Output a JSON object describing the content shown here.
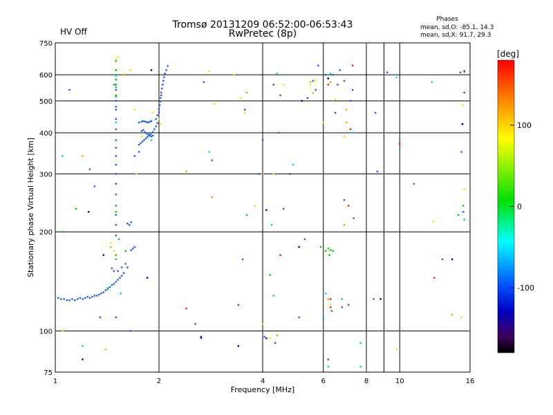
{
  "status_label": "HV Off",
  "status_color": "#e00000",
  "chart_data": {
    "type": "scatter",
    "title": "Tromsø 20131209 06:52:00-06:53:43",
    "subtitle": "RwPretec (8p)",
    "stats": {
      "heading": "Phases",
      "line1": "mean, sd,O: -85.1, 14.3",
      "line2": "mean, sd,X:  91.7, 29.3"
    },
    "xlabel": "Frequency [MHz]",
    "ylabel": "Stationary phase Virtual Height [km]",
    "x_scale": "log",
    "y_scale": "log",
    "xlim": [
      1,
      16
    ],
    "ylim": [
      75,
      750
    ],
    "x_ticks": [
      1,
      2,
      4,
      6,
      8,
      10,
      16
    ],
    "x_tick_labels": [
      "1",
      "2",
      "4",
      "6",
      "8",
      "10",
      "16"
    ],
    "y_ticks": [
      75,
      100,
      200,
      300,
      400,
      500,
      600,
      750
    ],
    "y_tick_labels": [
      "75",
      "100",
      "200",
      "300",
      "400",
      "500",
      "600",
      "750"
    ],
    "grid": true,
    "colorbar": {
      "label": "[deg]",
      "range": [
        -180,
        180
      ],
      "ticks": [
        100,
        0,
        -100
      ],
      "tick_labels": [
        "100",
        "0",
        "-100"
      ],
      "colors": [
        "#ff0000",
        "#ffa000",
        "#ffff00",
        "#00e000",
        "#00ffff",
        "#0060ff",
        "#0000c0",
        "#400060",
        "#000000"
      ]
    },
    "series": [
      {
        "color": "#1f5ae6",
        "points": [
          [
            1.02,
            126
          ],
          [
            1.04,
            125
          ],
          [
            1.06,
            125
          ],
          [
            1.08,
            124
          ],
          [
            1.1,
            124
          ],
          [
            1.12,
            125
          ],
          [
            1.14,
            124
          ],
          [
            1.16,
            125
          ],
          [
            1.18,
            126
          ],
          [
            1.2,
            125
          ],
          [
            1.22,
            126
          ],
          [
            1.24,
            127
          ],
          [
            1.26,
            126
          ],
          [
            1.28,
            127
          ],
          [
            1.3,
            128
          ],
          [
            1.32,
            128
          ],
          [
            1.34,
            129
          ],
          [
            1.36,
            130
          ],
          [
            1.38,
            131
          ],
          [
            1.4,
            133
          ],
          [
            1.42,
            134
          ],
          [
            1.44,
            136
          ],
          [
            1.46,
            138
          ],
          [
            1.48,
            139
          ],
          [
            1.5,
            141
          ],
          [
            1.52,
            143
          ],
          [
            1.54,
            145
          ],
          [
            1.56,
            147
          ],
          [
            1.58,
            150
          ],
          [
            1.62,
            212
          ],
          [
            1.64,
            210
          ],
          [
            1.66,
            214
          ],
          [
            1.66,
            176
          ],
          [
            1.68,
            178
          ],
          [
            1.7,
            180
          ],
          [
            1.75,
            430
          ],
          [
            1.78,
            432
          ],
          [
            1.8,
            434
          ],
          [
            1.82,
            433
          ],
          [
            1.84,
            431
          ],
          [
            1.86,
            430
          ],
          [
            1.88,
            432
          ],
          [
            1.9,
            434
          ],
          [
            1.78,
            405
          ],
          [
            1.8,
            408
          ],
          [
            1.82,
            402
          ],
          [
            1.84,
            398
          ],
          [
            1.86,
            395
          ],
          [
            1.88,
            392
          ],
          [
            1.9,
            390
          ],
          [
            1.92,
            392
          ],
          [
            1.75,
            368
          ],
          [
            1.77,
            372
          ],
          [
            1.79,
            376
          ],
          [
            1.81,
            380
          ],
          [
            1.83,
            384
          ],
          [
            1.85,
            388
          ],
          [
            1.87,
            392
          ],
          [
            1.89,
            396
          ],
          [
            1.92,
            402
          ],
          [
            1.94,
            410
          ],
          [
            1.96,
            418
          ],
          [
            1.98,
            428
          ],
          [
            1.96,
            440
          ],
          [
            1.98,
            452
          ],
          [
            2.0,
            462
          ],
          [
            2.0,
            472
          ],
          [
            2.01,
            485
          ],
          [
            2.02,
            498
          ],
          [
            2.02,
            510
          ],
          [
            2.03,
            520
          ],
          [
            2.03,
            530
          ],
          [
            2.04,
            545
          ],
          [
            2.05,
            560
          ],
          [
            2.06,
            575
          ],
          [
            2.07,
            590
          ],
          [
            2.08,
            605
          ],
          [
            2.1,
            620
          ],
          [
            2.12,
            638
          ],
          [
            1.5,
            300
          ],
          [
            1.5,
            320
          ],
          [
            1.5,
            340
          ],
          [
            1.5,
            360
          ],
          [
            1.5,
            380
          ],
          [
            1.5,
            410
          ],
          [
            1.5,
            440
          ],
          [
            1.5,
            480
          ],
          [
            1.5,
            520
          ],
          [
            1.5,
            280
          ],
          [
            1.5,
            260
          ],
          [
            1.5,
            240
          ],
          [
            1.5,
            225
          ],
          [
            1.5,
            210
          ],
          [
            1.5,
            195
          ],
          [
            1.5,
            110
          ],
          [
            1.5,
            470
          ],
          [
            1.5,
            500
          ],
          [
            1.5,
            540
          ],
          [
            1.5,
            560
          ],
          [
            1.5,
            580
          ],
          [
            1.5,
            620
          ],
          [
            1.46,
            155
          ],
          [
            1.48,
            152
          ],
          [
            1.52,
            152
          ],
          [
            1.56,
            156
          ],
          [
            1.6,
            160
          ],
          [
            1.62,
            156
          ],
          [
            1.35,
            110
          ],
          [
            1.65,
            100
          ],
          [
            1.75,
            350
          ],
          [
            1.7,
            340
          ],
          [
            1.1,
            540
          ],
          [
            1.26,
            310
          ],
          [
            1.3,
            275
          ],
          [
            2.7,
            570
          ],
          [
            2.55,
            105
          ],
          [
            2.85,
            330
          ],
          [
            3.5,
            165
          ],
          [
            3.55,
            470
          ],
          [
            3.9,
            300
          ],
          [
            4.0,
            380
          ],
          [
            4.3,
            560
          ],
          [
            4.5,
            520
          ],
          [
            4.8,
            300
          ],
          [
            5.3,
            190
          ],
          [
            5.4,
            510
          ],
          [
            5.6,
            575
          ],
          [
            5.7,
            540
          ],
          [
            5.8,
            640
          ],
          [
            6.1,
            600
          ],
          [
            6.2,
            585
          ],
          [
            6.35,
            115
          ],
          [
            6.4,
            600
          ],
          [
            6.6,
            560
          ],
          [
            6.7,
            620
          ],
          [
            6.9,
            250
          ],
          [
            7.2,
            500
          ],
          [
            7.3,
            540
          ],
          [
            8.5,
            460
          ],
          [
            8.6,
            305
          ],
          [
            9.2,
            610
          ],
          [
            11.0,
            280
          ],
          [
            13.3,
            165
          ],
          [
            15.0,
            610
          ],
          [
            15.1,
            350
          ],
          [
            15.2,
            425
          ],
          [
            15.3,
            230
          ],
          [
            15.4,
            530
          ],
          [
            3.4,
            120
          ],
          [
            6.8,
            118
          ],
          [
            5.1,
            110
          ],
          [
            4.35,
            92
          ],
          [
            4.6,
            235
          ],
          [
            8.4,
            125
          ],
          [
            6.2,
            82
          ],
          [
            4.45,
            400
          ],
          [
            7.35,
            220
          ],
          [
            2.65,
            95
          ],
          [
            4.05,
            96
          ],
          [
            7.1,
            120
          ],
          [
            6.5,
            460
          ]
        ]
      },
      {
        "color": "#000090",
        "points": [
          [
            1.38,
            170
          ],
          [
            1.9,
            620
          ],
          [
            2.65,
            96
          ],
          [
            4.1,
            233
          ],
          [
            5.1,
            180
          ],
          [
            5.2,
            500
          ],
          [
            6.2,
            585
          ],
          [
            8.8,
            125
          ],
          [
            14.2,
            165
          ],
          [
            15.2,
            425
          ],
          [
            15.4,
            615
          ],
          [
            3.4,
            90
          ],
          [
            4.1,
            95
          ],
          [
            1.2,
            82
          ],
          [
            1.25,
            230
          ],
          [
            1.85,
            145
          ]
        ]
      },
      {
        "color": "#00d000",
        "points": [
          [
            1.5,
            660
          ],
          [
            1.5,
            620
          ],
          [
            1.5,
            600
          ],
          [
            1.5,
            580
          ],
          [
            1.5,
            550
          ],
          [
            1.5,
            520
          ],
          [
            1.5,
            380
          ],
          [
            1.5,
            240
          ],
          [
            1.5,
            230
          ],
          [
            1.5,
            170
          ],
          [
            1.5,
            165
          ],
          [
            1.53,
            190
          ],
          [
            1.6,
            175
          ],
          [
            1.55,
            130
          ],
          [
            1.05,
            200
          ],
          [
            1.15,
            235
          ],
          [
            1.42,
            135
          ],
          [
            3.6,
            225
          ],
          [
            5.9,
            180
          ],
          [
            6.2,
            178
          ],
          [
            6.25,
            170
          ],
          [
            14.8,
            225
          ],
          [
            15.3,
            240
          ],
          [
            6.4,
            175
          ],
          [
            4.2,
            148
          ],
          [
            6.1,
            175
          ],
          [
            6.3,
            176
          ],
          [
            1.48,
            560
          ],
          [
            1.5,
            515
          ]
        ]
      },
      {
        "color": "#00c8ff",
        "points": [
          [
            1.5,
            595
          ],
          [
            1.5,
            430
          ],
          [
            1.55,
            130
          ],
          [
            1.9,
            380
          ],
          [
            2.8,
            350
          ],
          [
            4.25,
            210
          ],
          [
            4.3,
            128
          ],
          [
            4.9,
            320
          ],
          [
            6.1,
            130
          ],
          [
            6.2,
            78
          ],
          [
            6.8,
            125
          ],
          [
            7.3,
            400
          ],
          [
            7.7,
            92
          ],
          [
            7.7,
            78
          ],
          [
            9.8,
            590
          ],
          [
            12.4,
            570
          ],
          [
            15.4,
            218
          ],
          [
            1.2,
            90
          ],
          [
            1.05,
            340
          ],
          [
            4.4,
            605
          ],
          [
            6.0,
            110
          ],
          [
            6.3,
            605
          ]
        ]
      },
      {
        "color": "#e8e800",
        "points": [
          [
            1.5,
            670
          ],
          [
            1.52,
            680
          ],
          [
            1.65,
            620
          ],
          [
            1.7,
            470
          ],
          [
            1.72,
            300
          ],
          [
            1.78,
            390
          ],
          [
            1.92,
            460
          ],
          [
            2.0,
            440
          ],
          [
            2.02,
            425
          ],
          [
            3.3,
            600
          ],
          [
            3.45,
            510
          ],
          [
            3.55,
            460
          ],
          [
            3.8,
            240
          ],
          [
            4.0,
            105
          ],
          [
            4.2,
            95
          ],
          [
            4.6,
            560
          ],
          [
            5.5,
            560
          ],
          [
            5.7,
            575
          ],
          [
            6.0,
            430
          ],
          [
            6.3,
            120
          ],
          [
            6.9,
            390
          ],
          [
            7.0,
            430
          ],
          [
            9.8,
            88
          ],
          [
            12.5,
            215
          ],
          [
            15.3,
            485
          ],
          [
            15.4,
            270
          ],
          [
            1.05,
            100
          ],
          [
            1.45,
            185
          ],
          [
            2.9,
            490
          ],
          [
            2.8,
            615
          ],
          [
            1.48,
            175
          ],
          [
            6.5,
            505
          ],
          [
            4.3,
            300
          ],
          [
            15.1,
            110
          ]
        ]
      },
      {
        "color": "#ffa000",
        "points": [
          [
            1.2,
            340
          ],
          [
            1.4,
            88
          ],
          [
            2.4,
            305
          ],
          [
            2.85,
            255
          ],
          [
            3.6,
            530
          ],
          [
            4.0,
            300
          ],
          [
            4.4,
            97
          ],
          [
            5.5,
            570
          ],
          [
            5.6,
            528
          ],
          [
            6.2,
            125
          ],
          [
            6.3,
            570
          ],
          [
            6.9,
            210
          ],
          [
            7.0,
            430
          ],
          [
            7.0,
            470
          ],
          [
            14.2,
            112
          ],
          [
            15.4,
            610
          ],
          [
            1.45,
            180
          ],
          [
            6.2,
            560
          ],
          [
            1.58,
            600
          ],
          [
            4.5,
            170
          ]
        ]
      },
      {
        "color": "#ff2000",
        "points": [
          [
            2.4,
            117
          ],
          [
            4.5,
            170
          ],
          [
            6.2,
            560
          ],
          [
            6.3,
            125
          ],
          [
            7.1,
            240
          ],
          [
            7.2,
            410
          ],
          [
            7.3,
            640
          ],
          [
            10.0,
            370
          ],
          [
            12.6,
            145
          ],
          [
            6.3,
            118
          ],
          [
            6.9,
            575
          ]
        ]
      }
    ]
  }
}
